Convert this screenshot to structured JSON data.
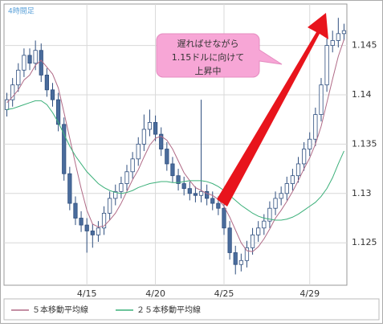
{
  "chart_data": {
    "type": "candlestick",
    "subtitle": "4時間足",
    "callout": [
      "遅ればせながら",
      "1.15ドルに向けて",
      "上昇中"
    ],
    "categories": [
      null,
      null,
      null,
      null,
      null,
      null,
      null,
      null,
      null,
      null,
      null,
      null,
      null,
      null,
      "4/15",
      null,
      null,
      null,
      null,
      null,
      null,
      null,
      null,
      null,
      null,
      null,
      "4/20",
      null,
      null,
      null,
      null,
      null,
      null,
      null,
      null,
      null,
      null,
      null,
      "4/25",
      null,
      null,
      null,
      null,
      null,
      null,
      null,
      null,
      null,
      null,
      null,
      null,
      null,
      null,
      "4/29",
      null,
      null,
      null,
      null,
      null,
      null
    ],
    "open": [
      1.1385,
      1.1395,
      1.141,
      1.1425,
      1.144,
      1.1432,
      1.1445,
      1.142,
      1.1405,
      1.1395,
      1.137,
      1.132,
      1.129,
      1.1275,
      1.1268,
      1.1262,
      1.1258,
      1.1265,
      1.128,
      1.1295,
      1.1302,
      1.131,
      1.1322,
      1.1335,
      1.135,
      1.1365,
      1.1372,
      1.136,
      1.1345,
      1.133,
      1.1318,
      1.131,
      1.1305,
      1.13,
      1.1298,
      1.1302,
      1.1295,
      1.129,
      1.1285,
      1.1265,
      1.124,
      1.1228,
      1.1232,
      1.1245,
      1.1258,
      1.1265,
      1.1272,
      1.1285,
      1.1295,
      1.13,
      1.131,
      1.1318,
      1.133,
      1.1345,
      1.1355,
      1.138,
      1.141,
      1.145,
      1.1455,
      1.1462
    ],
    "high": [
      1.1402,
      1.1417,
      1.1432,
      1.1447,
      1.1447,
      1.1455,
      1.1452,
      1.1427,
      1.1412,
      1.1402,
      1.1377,
      1.1327,
      1.1297,
      1.1282,
      1.1275,
      1.1269,
      1.1272,
      1.1287,
      1.1302,
      1.1309,
      1.1317,
      1.1329,
      1.1342,
      1.1357,
      1.138,
      1.1385,
      1.1379,
      1.1367,
      1.1352,
      1.1337,
      1.1325,
      1.1317,
      1.1312,
      1.1307,
      1.1395,
      1.1309,
      1.1302,
      1.1297,
      1.1292,
      1.1272,
      1.1247,
      1.1239,
      1.1252,
      1.1265,
      1.1272,
      1.1279,
      1.1292,
      1.1302,
      1.1307,
      1.1317,
      1.1325,
      1.1337,
      1.1352,
      1.1362,
      1.1387,
      1.1417,
      1.1457,
      1.1465,
      1.1478,
      1.1472
    ],
    "low": [
      1.1378,
      1.1388,
      1.1403,
      1.1418,
      1.1425,
      1.1425,
      1.1413,
      1.1398,
      1.1388,
      1.1363,
      1.1313,
      1.1283,
      1.1268,
      1.1261,
      1.124,
      1.1245,
      1.1251,
      1.1258,
      1.1273,
      1.1288,
      1.1295,
      1.1303,
      1.1315,
      1.1328,
      1.1343,
      1.1358,
      1.1353,
      1.1338,
      1.1323,
      1.1311,
      1.1303,
      1.1298,
      1.1293,
      1.1291,
      1.1291,
      1.1288,
      1.1283,
      1.1278,
      1.1258,
      1.1233,
      1.1218,
      1.1221,
      1.1225,
      1.1238,
      1.1251,
      1.1258,
      1.1265,
      1.1278,
      1.1288,
      1.1293,
      1.1303,
      1.1311,
      1.1323,
      1.1338,
      1.1348,
      1.1373,
      1.1403,
      1.1443,
      1.1448,
      1.1455
    ],
    "close": [
      1.1395,
      1.141,
      1.1425,
      1.144,
      1.1432,
      1.1445,
      1.142,
      1.1405,
      1.1395,
      1.137,
      1.132,
      1.129,
      1.1275,
      1.1268,
      1.1262,
      1.1258,
      1.1265,
      1.128,
      1.1295,
      1.1302,
      1.131,
      1.1322,
      1.1335,
      1.135,
      1.1365,
      1.1372,
      1.136,
      1.1345,
      1.133,
      1.1318,
      1.131,
      1.1305,
      1.13,
      1.1298,
      1.1302,
      1.1295,
      1.129,
      1.1285,
      1.1265,
      1.124,
      1.1228,
      1.1232,
      1.1245,
      1.1258,
      1.1265,
      1.1272,
      1.1285,
      1.1295,
      1.13,
      1.131,
      1.1318,
      1.133,
      1.1345,
      1.1355,
      1.138,
      1.141,
      1.145,
      1.1455,
      1.1462,
      1.1465
    ],
    "up_color": "#ffffff",
    "down_color": "#4a6c9c",
    "candle_edge_color": "#2f4f7f",
    "series": [
      {
        "name": "５本移動平均線",
        "color": "#b06a86",
        "values": [
          1.1392,
          1.1398,
          1.1405,
          1.1415,
          1.142,
          1.143,
          1.1435,
          1.1428,
          1.1421,
          1.1407,
          1.1382,
          1.1356,
          1.133,
          1.1305,
          1.1283,
          1.1269,
          1.1266,
          1.1267,
          1.1273,
          1.128,
          1.129,
          1.1302,
          1.1314,
          1.1324,
          1.1337,
          1.1349,
          1.1356,
          1.1358,
          1.1354,
          1.1345,
          1.1333,
          1.1321,
          1.1313,
          1.1306,
          1.1303,
          1.13,
          1.1298,
          1.1294,
          1.1287,
          1.1276,
          1.1263,
          1.125,
          1.1242,
          1.1241,
          1.1246,
          1.1254,
          1.1264,
          1.1275,
          1.1283,
          1.1292,
          1.1302,
          1.1313,
          1.1325,
          1.1336,
          1.135,
          1.1368,
          1.1392,
          1.1416,
          1.1439,
          1.1456
        ]
      },
      {
        "name": "２５本移動平均線",
        "color": "#3cb07a",
        "values": [
          1.1385,
          1.1386,
          1.1388,
          1.139,
          1.1392,
          1.1394,
          1.1394,
          1.139,
          1.1382,
          1.1372,
          1.136,
          1.1348,
          1.1338,
          1.133,
          1.1322,
          1.1316,
          1.131,
          1.1306,
          1.1303,
          1.1301,
          1.13,
          1.1301,
          1.1303,
          1.1306,
          1.1308,
          1.131,
          1.1311,
          1.1312,
          1.1312,
          1.1311,
          1.1311,
          1.1312,
          1.1313,
          1.1313,
          1.1313,
          1.1312,
          1.131,
          1.1307,
          1.1303,
          1.1298,
          1.1293,
          1.1288,
          1.1284,
          1.128,
          1.1277,
          1.1275,
          1.1274,
          1.1273,
          1.1273,
          1.1274,
          1.1276,
          1.1279,
          1.1283,
          1.1287,
          1.1291,
          1.1297,
          1.1305,
          1.1316,
          1.133,
          1.1343
        ]
      }
    ],
    "ylim": [
      1.1207,
      1.1492
    ],
    "yticks": [
      1.125,
      1.13,
      1.135,
      1.14,
      1.145
    ],
    "grid": true
  }
}
